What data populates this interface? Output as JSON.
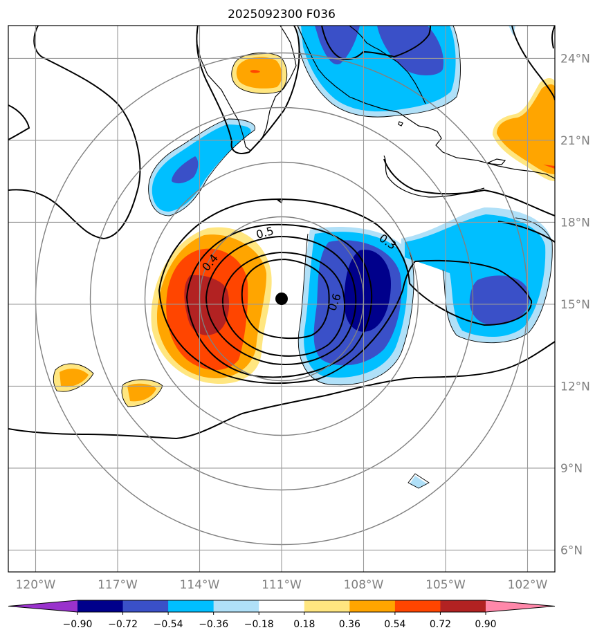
{
  "chart_data": {
    "type": "contour_map",
    "title": "2025092300 F036",
    "center_marker": {
      "lon": -111.0,
      "lat": 15.2
    },
    "x_ticks": [
      -120,
      -117,
      -114,
      -111,
      -108,
      -105,
      -102
    ],
    "x_tick_labels": [
      "120°W",
      "117°W",
      "114°W",
      "111°W",
      "108°W",
      "105°W",
      "102°W"
    ],
    "y_ticks": [
      6,
      9,
      12,
      15,
      18,
      21,
      24
    ],
    "y_tick_labels": [
      "6°N",
      "9°N",
      "12°N",
      "15°N",
      "18°N",
      "21°N",
      "24°N"
    ],
    "xlim": [
      -121,
      -101
    ],
    "ylim": [
      5.2,
      25.2
    ],
    "range_rings_deg": [
      3,
      5,
      7,
      9
    ],
    "contour_levels": [
      0.3,
      0.4,
      0.5,
      0.6
    ],
    "contour_labels": [
      "0.3",
      "0.4",
      "0.5",
      "0.6"
    ],
    "colorbar": {
      "boundaries": [
        -0.9,
        -0.72,
        -0.54,
        -0.36,
        -0.18,
        0.18,
        0.36,
        0.54,
        0.72,
        0.9
      ],
      "tick_labels": [
        "−0.90",
        "−0.72",
        "−0.54",
        "−0.36",
        "−0.18",
        "0.18",
        "0.36",
        "0.54",
        "0.72",
        "0.90"
      ],
      "colors": [
        "#9932cc",
        "#00008b",
        "#3a50c8",
        "#00bfff",
        "#b0e0f8",
        "#ffffff",
        "#ffe680",
        "#ffa500",
        "#ff4500",
        "#b22222",
        "#ff88aa"
      ],
      "extend": "both"
    },
    "shaded_anomalies": [
      {
        "name": "west-positive-core",
        "lon": -113.4,
        "lat": 15.0,
        "value": 0.8
      },
      {
        "name": "east-negative-core",
        "lon": -107.3,
        "lat": 15.4,
        "value": -0.85
      },
      {
        "name": "north-negative-band",
        "lon": -107.5,
        "lat": 24.0,
        "value": -0.6
      },
      {
        "name": "northwest-negative",
        "lon": -114.5,
        "lat": 19.8,
        "value": -0.5
      },
      {
        "name": "east-negative-lobe",
        "lon": -103.5,
        "lat": 15.2,
        "value": -0.55
      },
      {
        "name": "northeast-positive",
        "lon": -101.5,
        "lat": 21.2,
        "value": 0.5
      },
      {
        "name": "north-positive-blob",
        "lon": -112.0,
        "lat": 23.5,
        "value": 0.65
      }
    ]
  }
}
